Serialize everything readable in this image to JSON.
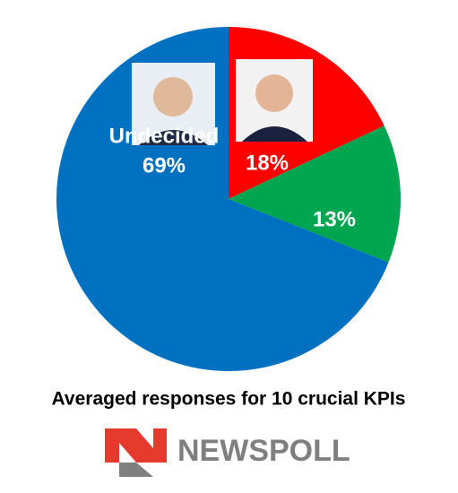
{
  "chart_data": {
    "type": "pie",
    "title": "Averaged responses for 10 crucial KPIs",
    "categories": [
      null,
      null,
      "Undecided"
    ],
    "values": [
      18,
      13,
      69
    ],
    "value_labels": [
      "18%",
      "13%",
      "69%"
    ],
    "colors": [
      "#ff0000",
      "#00a550",
      "#0070c0"
    ]
  },
  "logo": "NEWSPOLL"
}
